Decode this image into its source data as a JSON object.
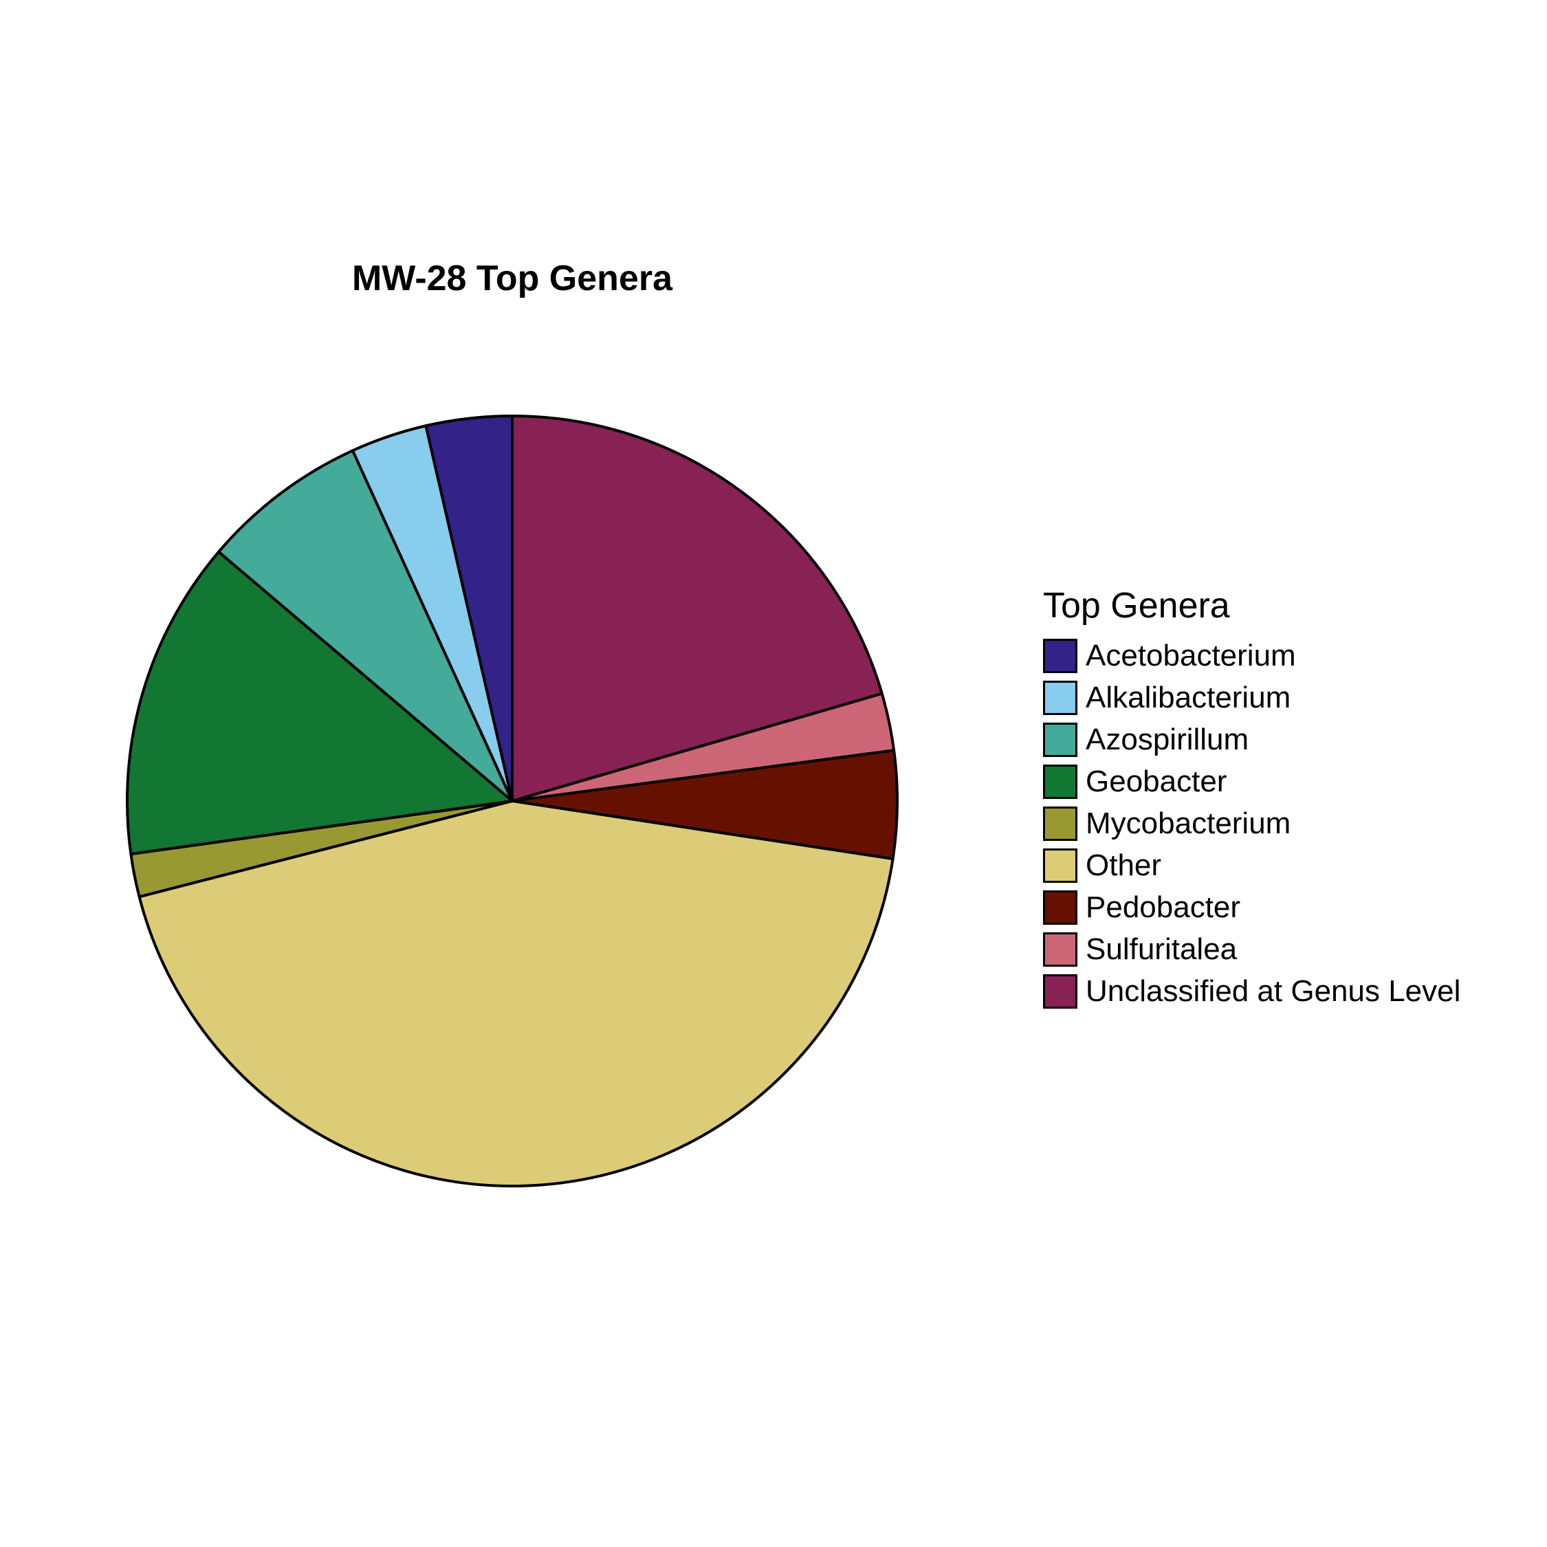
{
  "chart_data": {
    "type": "pie",
    "title": "MW-28 Top Genera",
    "legend_title": "Top Genera",
    "legend_position": "right",
    "start_angle": "12 o'clock, clockwise",
    "slices": [
      {
        "label": "Unclassified at Genus Level",
        "value": 20.5,
        "color": "#882255"
      },
      {
        "label": "Sulfuritalea",
        "value": 2.4,
        "color": "#CC6677"
      },
      {
        "label": "Pedobacter",
        "value": 4.5,
        "color": "#661100"
      },
      {
        "label": "Other",
        "value": 43.6,
        "color": "#DDCC77"
      },
      {
        "label": "Mycobacterium",
        "value": 1.8,
        "color": "#999933"
      },
      {
        "label": "Geobacter",
        "value": 13.4,
        "color": "#117733"
      },
      {
        "label": "Azospirillum",
        "value": 7.0,
        "color": "#44AA99"
      },
      {
        "label": "Alkalibacterium",
        "value": 3.2,
        "color": "#88CCEE"
      },
      {
        "label": "Acetobacterium",
        "value": 3.6,
        "color": "#332288"
      }
    ],
    "legend_order": [
      "Acetobacterium",
      "Alkalibacterium",
      "Azospirillum",
      "Geobacter",
      "Mycobacterium",
      "Other",
      "Pedobacter",
      "Sulfuritalea",
      "Unclassified at Genus Level"
    ]
  }
}
